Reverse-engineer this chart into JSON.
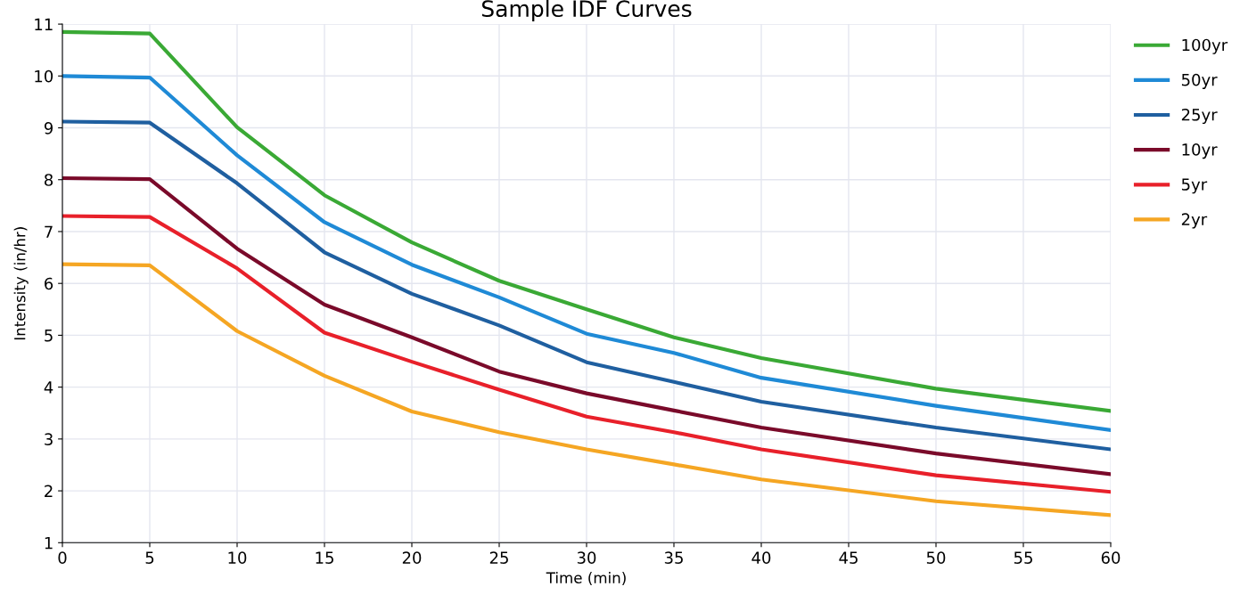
{
  "chart_data": {
    "type": "line",
    "title": "Sample IDF Curves",
    "xlabel": "Time (min)",
    "ylabel": "Intensity (in/hr)",
    "x": [
      0,
      5,
      10,
      15,
      20,
      25,
      30,
      35,
      40,
      50,
      60
    ],
    "series": [
      {
        "name": "100yr",
        "color": "#3aa935",
        "values": [
          10.85,
          10.82,
          9.01,
          7.7,
          6.79,
          6.05,
          5.5,
          4.96,
          4.56,
          3.97,
          3.54
        ]
      },
      {
        "name": "50yr",
        "color": "#1f8ad6",
        "values": [
          10.0,
          9.97,
          8.47,
          7.18,
          6.36,
          5.73,
          5.03,
          4.66,
          4.18,
          3.64,
          3.17
        ]
      },
      {
        "name": "25yr",
        "color": "#1f5fa0",
        "values": [
          9.12,
          9.1,
          7.93,
          6.6,
          5.8,
          5.19,
          4.48,
          4.1,
          3.72,
          3.22,
          2.8
        ]
      },
      {
        "name": "10yr",
        "color": "#7a0a2a",
        "values": [
          8.03,
          8.01,
          6.67,
          5.59,
          4.96,
          4.3,
          3.88,
          3.55,
          3.22,
          2.72,
          2.32
        ]
      },
      {
        "name": "5yr",
        "color": "#e8202a",
        "values": [
          7.3,
          7.28,
          6.29,
          5.05,
          4.49,
          3.95,
          3.43,
          3.13,
          2.8,
          2.3,
          1.98
        ]
      },
      {
        "name": "2yr",
        "color": "#f5a623",
        "values": [
          6.37,
          6.35,
          5.08,
          4.22,
          3.53,
          3.13,
          2.8,
          2.51,
          2.22,
          1.8,
          1.53
        ]
      }
    ],
    "xlim": [
      0,
      60
    ],
    "ylim": [
      1,
      11
    ],
    "xticks": [
      0,
      5,
      10,
      15,
      20,
      25,
      30,
      35,
      40,
      45,
      50,
      55,
      60
    ],
    "yticks": [
      1,
      2,
      3,
      4,
      5,
      6,
      7,
      8,
      9,
      10,
      11
    ],
    "grid": true,
    "legend": "top right",
    "marker": "none",
    "line_style": "solid"
  }
}
